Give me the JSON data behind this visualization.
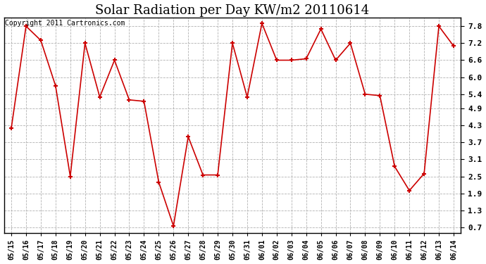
{
  "title": "Solar Radiation per Day KW/m2 20110614",
  "copyright_text": "Copyright 2011 Cartronics.com",
  "dates": [
    "05/15",
    "05/16",
    "05/17",
    "05/18",
    "05/19",
    "05/20",
    "05/21",
    "05/22",
    "05/23",
    "05/24",
    "05/25",
    "05/26",
    "05/27",
    "05/28",
    "05/29",
    "05/30",
    "05/31",
    "06/01",
    "06/02",
    "06/03",
    "06/04",
    "06/05",
    "06/06",
    "06/07",
    "06/08",
    "06/09",
    "06/10",
    "06/11",
    "06/12",
    "06/13",
    "06/14"
  ],
  "values": [
    4.2,
    7.8,
    7.3,
    5.7,
    2.5,
    7.2,
    5.3,
    6.6,
    5.2,
    5.15,
    2.3,
    0.75,
    3.9,
    2.55,
    2.55,
    7.2,
    5.3,
    7.9,
    6.6,
    6.6,
    6.65,
    7.7,
    6.6,
    7.2,
    5.4,
    5.35,
    2.85,
    2.0,
    2.6,
    7.8,
    7.1
  ],
  "line_color": "#cc0000",
  "marker": "+",
  "marker_color": "#cc0000",
  "background_color": "#ffffff",
  "grid_color": "#aaaaaa",
  "yticks": [
    0.7,
    1.3,
    1.9,
    2.5,
    3.1,
    3.7,
    4.3,
    4.9,
    5.4,
    6.0,
    6.6,
    7.2,
    7.8
  ],
  "ylim": [
    0.5,
    8.1
  ],
  "title_fontsize": 13,
  "copyright_fontsize": 7,
  "tick_fontsize": 8,
  "xtick_fontsize": 7
}
